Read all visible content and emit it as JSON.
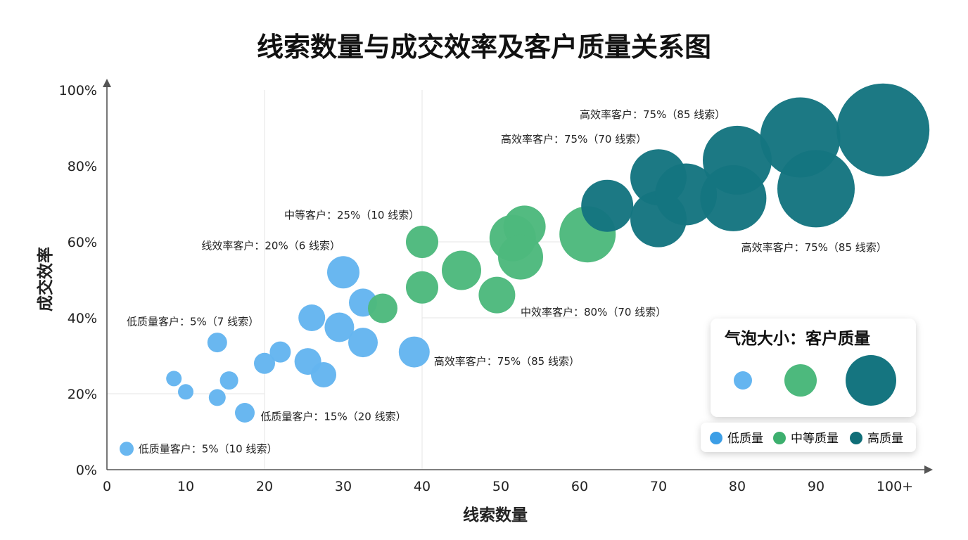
{
  "chart_data": {
    "type": "scatter",
    "title": "线索数量与成交效率及客户质量关系图",
    "xlabel": "线索数量",
    "ylabel": "成交效率",
    "xlim": [
      0,
      100
    ],
    "ylim": [
      0,
      100
    ],
    "x_ticks": [
      "0",
      "10",
      "20",
      "30",
      "40",
      "50",
      "60",
      "70",
      "80",
      "90",
      "100+"
    ],
    "y_ticks": [
      "0%",
      "20%",
      "40%",
      "60%",
      "80%",
      "100%"
    ],
    "grid": "partial",
    "colors": {
      "low": "#64B5F0",
      "medium": "#4DB97D",
      "high": "#157580"
    },
    "series": [
      {
        "name": "低质量",
        "color": "#64B5F0",
        "points": [
          {
            "x": 2.5,
            "y": 5.5,
            "size": 10
          },
          {
            "x": 8.5,
            "y": 24,
            "size": 11
          },
          {
            "x": 10,
            "y": 20.5,
            "size": 11
          },
          {
            "x": 14,
            "y": 33.5,
            "size": 14
          },
          {
            "x": 14,
            "y": 19,
            "size": 12
          },
          {
            "x": 15.5,
            "y": 23.5,
            "size": 13
          },
          {
            "x": 17.5,
            "y": 15,
            "size": 14
          },
          {
            "x": 20,
            "y": 28,
            "size": 15
          },
          {
            "x": 22,
            "y": 31,
            "size": 15
          },
          {
            "x": 25.5,
            "y": 28.5,
            "size": 19
          },
          {
            "x": 26,
            "y": 40,
            "size": 19
          },
          {
            "x": 27.5,
            "y": 25,
            "size": 18
          },
          {
            "x": 29.5,
            "y": 37.5,
            "size": 21
          },
          {
            "x": 30,
            "y": 52,
            "size": 23
          },
          {
            "x": 32.5,
            "y": 44,
            "size": 20
          },
          {
            "x": 32.5,
            "y": 33.5,
            "size": 21
          },
          {
            "x": 39,
            "y": 31,
            "size": 22
          }
        ]
      },
      {
        "name": "中等质量",
        "color": "#4DB97D",
        "points": [
          {
            "x": 35,
            "y": 42.5,
            "size": 21
          },
          {
            "x": 40,
            "y": 60,
            "size": 23
          },
          {
            "x": 40,
            "y": 48,
            "size": 23
          },
          {
            "x": 45,
            "y": 52.5,
            "size": 28
          },
          {
            "x": 49.5,
            "y": 46,
            "size": 26
          },
          {
            "x": 53,
            "y": 64,
            "size": 30
          },
          {
            "x": 51.5,
            "y": 61,
            "size": 33
          },
          {
            "x": 52.5,
            "y": 56,
            "size": 32
          },
          {
            "x": 61,
            "y": 62,
            "size": 40
          }
        ]
      },
      {
        "name": "高质量",
        "color": "#157580",
        "points": [
          {
            "x": 63.5,
            "y": 69.5,
            "size": 37
          },
          {
            "x": 70,
            "y": 66,
            "size": 40
          },
          {
            "x": 70,
            "y": 77,
            "size": 40
          },
          {
            "x": 73.5,
            "y": 72.5,
            "size": 44
          },
          {
            "x": 80,
            "y": 81.5,
            "size": 49
          },
          {
            "x": 79.5,
            "y": 71.5,
            "size": 47
          },
          {
            "x": 88,
            "y": 87.5,
            "size": 57
          },
          {
            "x": 90,
            "y": 74,
            "size": 55
          },
          {
            "x": 98.5,
            "y": 89.5,
            "size": 66
          }
        ]
      }
    ],
    "annotations": [
      {
        "text": "低质量客户：5%（10 线索）",
        "x": 4,
        "y": 5.5
      },
      {
        "text": "低质量客户：15%（20 线索）",
        "x": 19.5,
        "y": 14
      },
      {
        "text": "低质量客户：5%（7 线索）",
        "x": 2.5,
        "y": 39
      },
      {
        "text": "线效率客户：20%（6 线索）",
        "x": 12,
        "y": 59
      },
      {
        "text": "中等客户：25%（10 线索）",
        "x": 22.5,
        "y": 67
      },
      {
        "text": "高效率客户：75%（85 线索）",
        "x": 41.5,
        "y": 28.5
      },
      {
        "text": "中效率客户：80%（70 线索）",
        "x": 52.5,
        "y": 41.5
      },
      {
        "text": "高效率客户：75%（70 线索）",
        "x": 50,
        "y": 87
      },
      {
        "text": "高效率客户：75%（85 线索）",
        "x": 60,
        "y": 93.5
      },
      {
        "text": "高效率客户：75%（85 线索）",
        "x": 80.5,
        "y": 58.5
      }
    ],
    "size_legend": {
      "title": "气泡大小：客户质量",
      "samples": [
        {
          "size": 13,
          "color": "#64B5F0"
        },
        {
          "size": 23,
          "color": "#4DB97D"
        },
        {
          "size": 36,
          "color": "#157580"
        }
      ]
    },
    "legend": {
      "placement": "bottom-right",
      "items": [
        {
          "label": "低质量",
          "color": "#3C9EE6"
        },
        {
          "label": "中等质量",
          "color": "#3DAF6E"
        },
        {
          "label": "高质量",
          "color": "#106E78"
        }
      ]
    }
  }
}
